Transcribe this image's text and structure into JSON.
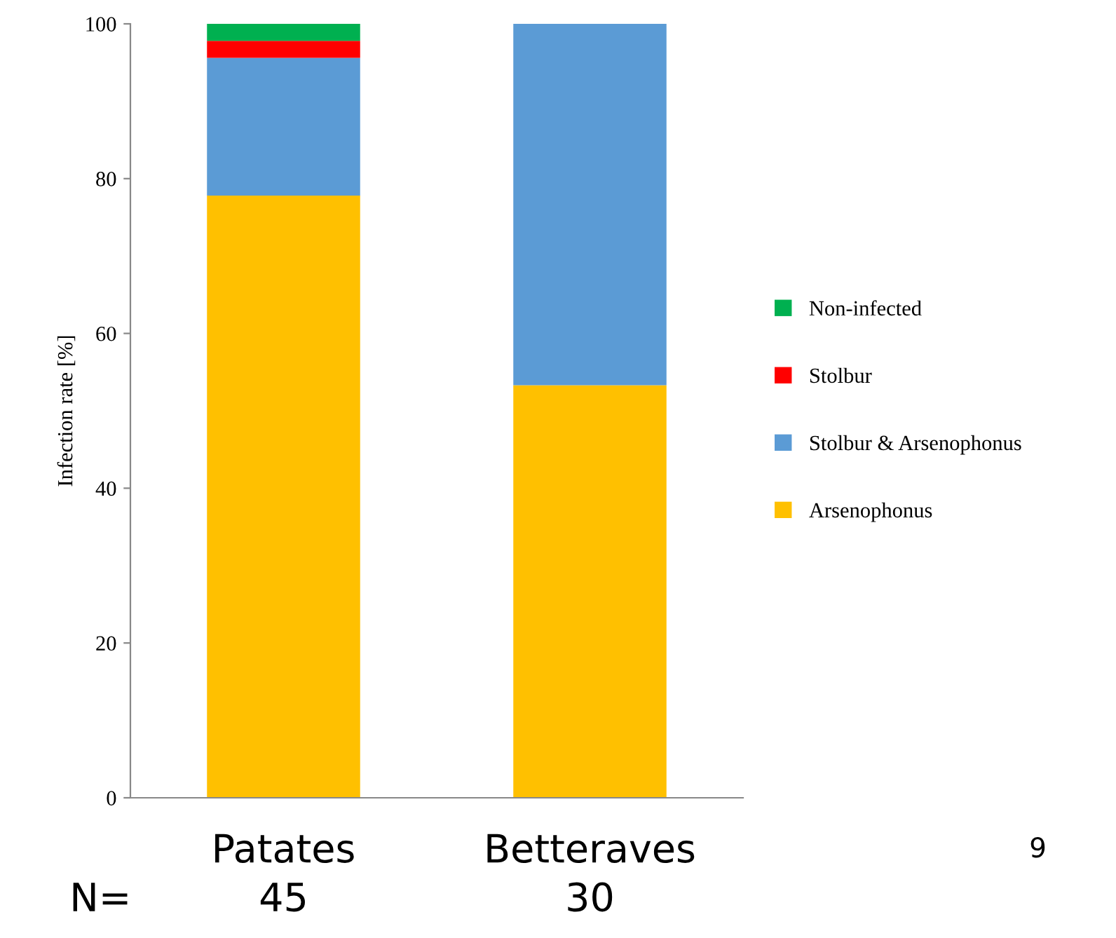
{
  "chart_data": {
    "type": "bar",
    "stacked": true,
    "ylabel": "Infection rate [%]",
    "categories": [
      "Patates",
      "Betteraves"
    ],
    "series": [
      {
        "name": "Arsenophonus",
        "color": "#ffc000",
        "values": [
          77.8,
          53.3
        ]
      },
      {
        "name": "Stolbur & Arsenophonus",
        "color": "#5b9bd5",
        "values": [
          17.8,
          46.7
        ]
      },
      {
        "name": "Stolbur",
        "color": "#ff0000",
        "values": [
          2.2,
          0
        ]
      },
      {
        "name": "Non-infected",
        "color": "#00b050",
        "values": [
          2.2,
          0
        ]
      }
    ],
    "ylim": [
      0,
      100
    ],
    "yticks": [
      0,
      20,
      40,
      60,
      80,
      100
    ],
    "grid": false,
    "legend": "right",
    "annotations": [
      "N=",
      "45",
      "30",
      "9"
    ]
  }
}
